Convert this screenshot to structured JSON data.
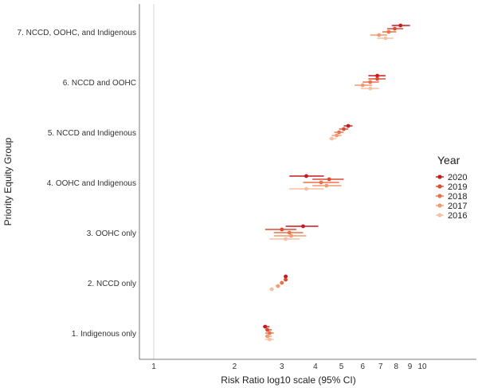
{
  "chart_data": {
    "type": "scatter",
    "subtype": "forest-plot",
    "xlabel": "Risk Ratio log10 scale (95% CI)",
    "ylabel": "Priority Equity Group",
    "x_scale": "log10",
    "xlim": [
      0.8,
      14
    ],
    "x_ticks": [
      1,
      2,
      3,
      4,
      5,
      6,
      7,
      8,
      9,
      10
    ],
    "x_tick_labels": [
      "1",
      "2",
      "3",
      "4",
      "5",
      "6",
      "7",
      "8",
      "9",
      "10"
    ],
    "reference_line": 1,
    "categories": [
      "7. NCCD, OOHC, and Indigenous",
      "6. NCCD and OOHC",
      "5. NCCD and Indigenous",
      "4. OOHC and Indigenous",
      "3. OOHC only",
      "2. NCCD only",
      "1. Indigenous only"
    ],
    "legend": {
      "title": "Year",
      "position": "right"
    },
    "series": [
      {
        "name": "2020",
        "color": "#c8191f",
        "estimates": [
          8.3,
          6.8,
          5.3,
          3.7,
          3.6,
          3.1,
          2.6
        ],
        "lower": [
          7.7,
          6.3,
          5.1,
          3.2,
          3.1,
          3.05,
          2.55
        ],
        "upper": [
          9.0,
          7.3,
          5.5,
          4.3,
          4.1,
          3.15,
          2.7
        ]
      },
      {
        "name": "2019",
        "color": "#dd4a31",
        "estimates": [
          7.9,
          6.8,
          5.1,
          4.5,
          3.0,
          3.1,
          2.65
        ],
        "lower": [
          7.4,
          6.3,
          4.9,
          3.9,
          2.6,
          3.05,
          2.6
        ],
        "upper": [
          8.5,
          7.3,
          5.3,
          5.1,
          3.4,
          3.15,
          2.75
        ]
      },
      {
        "name": "2018",
        "color": "#ea7049",
        "estimates": [
          7.5,
          6.4,
          4.9,
          4.2,
          3.2,
          3.0,
          2.7
        ],
        "lower": [
          7.1,
          6.0,
          4.7,
          3.6,
          2.8,
          2.95,
          2.6
        ],
        "upper": [
          8.0,
          6.9,
          5.1,
          4.9,
          3.6,
          3.05,
          2.8
        ]
      },
      {
        "name": "2017",
        "color": "#f39a71",
        "estimates": [
          6.9,
          6.0,
          4.8,
          4.4,
          3.25,
          2.9,
          2.65
        ],
        "lower": [
          6.4,
          5.6,
          4.6,
          3.9,
          2.8,
          2.85,
          2.6
        ],
        "upper": [
          7.4,
          6.5,
          5.0,
          5.0,
          3.7,
          2.95,
          2.75
        ]
      },
      {
        "name": "2016",
        "color": "#f7bfa4",
        "estimates": [
          7.3,
          6.4,
          4.6,
          3.7,
          3.1,
          2.75,
          2.7
        ],
        "lower": [
          6.8,
          5.9,
          4.5,
          3.2,
          2.7,
          2.7,
          2.6
        ],
        "upper": [
          7.8,
          6.9,
          4.8,
          4.3,
          3.5,
          2.8,
          2.8
        ]
      }
    ]
  }
}
